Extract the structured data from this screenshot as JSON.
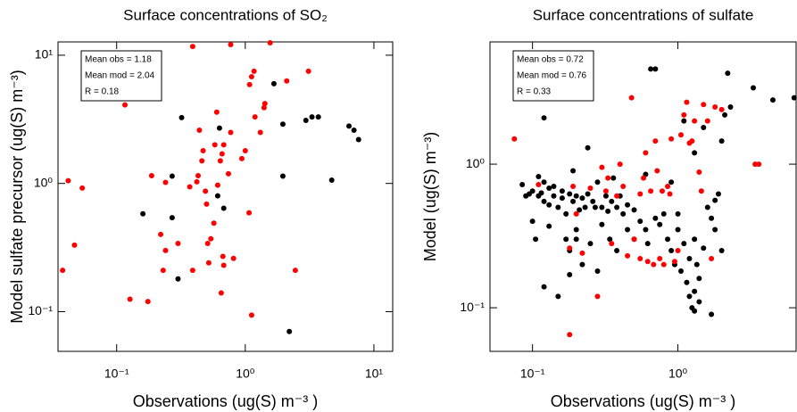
{
  "chart_data": [
    {
      "type": "scatter",
      "title": "Surface concentrations of SO₂",
      "x_label": "Observations (ug(S) m⁻³ )",
      "y_label": "Model sulfate precursor (ug(S) m⁻³)",
      "annotations": [
        "Mean obs = 1.18",
        "Mean mod = 2.04",
        "R = 0.18"
      ],
      "xscale": "log",
      "yscale": "log",
      "xlim": [
        0.035,
        14
      ],
      "ylim": [
        0.049,
        12.7
      ],
      "xticks": [
        {
          "value": 0.1,
          "label": "10⁻¹"
        },
        {
          "value": 1,
          "label": "10⁰"
        },
        {
          "value": 10,
          "label": "10¹"
        }
      ],
      "yticks": [
        {
          "value": 0.1,
          "label": "10⁻¹"
        },
        {
          "value": 1,
          "label": "10⁰"
        },
        {
          "value": 10,
          "label": "10¹"
        }
      ],
      "series": [
        {
          "color": "#000000",
          "x": [
            0.16,
            0.27,
            0.27,
            0.32,
            0.3,
            0.63,
            1.67,
            1.96,
            1.96,
            2.2,
            2.96,
            3.3,
            3.7,
            4.7,
            6.4,
            7.0,
            7.6,
            0.61,
            0.68
          ],
          "values": [
            0.58,
            1.14,
            0.54,
            3.26,
            0.18,
            2.7,
            6.0,
            2.9,
            1.14,
            0.07,
            3.1,
            3.3,
            3.3,
            1.06,
            2.8,
            2.6,
            2.2,
            0.8,
            0.64
          ]
        },
        {
          "color": "#ff0000",
          "x": [
            0.038,
            0.042,
            0.047,
            0.054,
            0.116,
            0.127,
            0.175,
            0.187,
            0.24,
            0.22,
            0.23,
            0.24,
            0.3,
            0.39,
            0.39,
            0.37,
            0.42,
            0.43,
            0.44,
            0.46,
            0.47,
            0.49,
            0.5,
            0.51,
            0.52,
            0.54,
            0.57,
            0.58,
            0.6,
            0.61,
            0.64,
            0.66,
            0.67,
            0.68,
            0.68,
            0.74,
            0.77,
            0.77,
            0.81,
            0.65,
            0.94,
            1.0,
            1.07,
            1.08,
            1.12,
            1.12,
            1.17,
            1.19,
            1.31,
            1.4,
            1.42,
            1.56,
            2.1,
            2.45,
            3.1
          ],
          "values": [
            0.21,
            1.05,
            0.33,
            0.92,
            4.1,
            0.125,
            0.12,
            1.15,
            1.02,
            0.4,
            0.21,
            0.3,
            0.34,
            0.21,
            11.7,
            0.94,
            1.03,
            1.15,
            2.6,
            1.5,
            1.8,
            0.87,
            0.69,
            0.34,
            0.24,
            0.37,
            0.49,
            2.0,
            3.6,
            0.97,
            1.5,
            1.7,
            0.27,
            0.23,
            2.0,
            1.19,
            2.5,
            12.1,
            0.26,
            0.14,
            1.56,
            1.8,
            0.59,
            5.9,
            6.8,
            0.094,
            7.5,
            3.3,
            2.5,
            3.9,
            4.2,
            12.5,
            6.3,
            0.21,
            7.5
          ]
        }
      ]
    },
    {
      "type": "scatter",
      "title": "Surface concentrations of sulfate",
      "x_label": "Observations (ug(S) m⁻³ )",
      "y_label": "Model (ug(S) m⁻³)",
      "annotations": [
        "Mean obs = 0.72",
        "Mean mod = 0.76",
        "R = 0.33"
      ],
      "xscale": "log",
      "yscale": "log",
      "xlim": [
        0.051,
        6.5
      ],
      "ylim": [
        0.0497,
        7.1
      ],
      "xticks": [
        {
          "value": 0.1,
          "label": "10⁻¹"
        },
        {
          "value": 1,
          "label": "10⁰"
        }
      ],
      "yticks": [
        {
          "value": 0.1,
          "label": "10⁻¹"
        },
        {
          "value": 1,
          "label": "10⁰"
        }
      ],
      "series": [
        {
          "color": "#000000",
          "x": [
            0.085,
            0.09,
            0.095,
            0.1,
            0.1,
            0.105,
            0.11,
            0.11,
            0.115,
            0.12,
            0.12,
            0.12,
            0.12,
            0.13,
            0.13,
            0.13,
            0.13,
            0.14,
            0.14,
            0.15,
            0.15,
            0.16,
            0.16,
            0.17,
            0.17,
            0.18,
            0.18,
            0.18,
            0.19,
            0.19,
            0.2,
            0.2,
            0.2,
            0.21,
            0.22,
            0.22,
            0.23,
            0.24,
            0.24,
            0.25,
            0.26,
            0.27,
            0.28,
            0.28,
            0.3,
            0.3,
            0.32,
            0.33,
            0.34,
            0.35,
            0.36,
            0.38,
            0.38,
            0.4,
            0.42,
            0.45,
            0.45,
            0.5,
            0.5,
            0.55,
            0.6,
            0.62,
            0.65,
            0.7,
            0.7,
            0.75,
            0.8,
            0.85,
            0.9,
            0.95,
            1.0,
            1.0,
            1.05,
            1.1,
            1.15,
            1.2,
            1.2,
            1.25,
            1.3,
            1.3,
            1.3,
            1.35,
            1.4,
            1.4,
            1.5,
            1.6,
            1.7,
            1.7,
            1.8,
            1.8,
            1.9,
            2.0,
            2.0,
            2.1,
            2.2,
            2.3,
            3.3,
            4.5,
            6.3,
            1.5,
            1.3,
            1.1,
            0.9,
            0.6
          ],
          "values": [
            0.72,
            0.6,
            0.62,
            0.65,
            0.4,
            0.3,
            0.6,
            0.82,
            0.63,
            0.75,
            0.55,
            0.14,
            2.1,
            0.68,
            0.52,
            0.37,
            3.1,
            0.6,
            0.7,
            0.5,
            0.12,
            0.65,
            0.58,
            0.45,
            0.3,
            0.62,
            0.25,
            0.17,
            0.55,
            0.9,
            0.6,
            0.35,
            0.3,
            0.48,
            0.58,
            0.2,
            0.5,
            0.62,
            1.3,
            0.28,
            0.55,
            0.5,
            0.75,
            0.18,
            0.5,
            0.38,
            0.6,
            0.47,
            0.3,
            0.55,
            0.8,
            0.5,
            0.25,
            0.6,
            0.45,
            0.35,
            0.52,
            0.48,
            0.3,
            0.4,
            0.35,
            0.28,
            4.6,
            4.6,
            0.42,
            0.38,
            0.45,
            0.3,
            0.25,
            0.2,
            0.45,
            0.35,
            0.18,
            0.28,
            0.15,
            0.12,
            0.22,
            0.1,
            0.095,
            0.13,
            0.3,
            0.2,
            0.16,
            0.11,
            0.26,
            0.5,
            0.42,
            0.09,
            0.56,
            0.35,
            0.62,
            0.25,
            1.45,
            2.2,
            4.3,
            2.5,
            3.4,
            2.8,
            2.9,
            1.8,
            1.2,
            2.0,
            0.75,
            0.85
          ]
        },
        {
          "color": "#ff0000",
          "x": [
            0.075,
            0.11,
            0.18,
            0.18,
            0.19,
            0.2,
            0.22,
            0.25,
            0.28,
            0.3,
            0.32,
            0.33,
            0.35,
            0.38,
            0.4,
            0.42,
            0.45,
            0.48,
            0.5,
            0.55,
            0.55,
            0.58,
            0.6,
            0.62,
            0.65,
            0.68,
            0.7,
            0.72,
            0.75,
            0.78,
            0.8,
            0.85,
            0.88,
            0.9,
            0.95,
            1.0,
            1.05,
            1.1,
            1.15,
            1.2,
            1.25,
            1.3,
            1.45,
            1.5,
            1.6,
            1.7,
            1.8,
            2.0,
            3.4,
            3.6,
            1.4
          ],
          "values": [
            1.5,
            0.72,
            0.065,
            0.26,
            0.7,
            0.45,
            0.24,
            0.68,
            0.12,
            0.95,
            0.65,
            0.8,
            0.28,
            0.6,
            1.0,
            0.7,
            0.23,
            2.9,
            0.3,
            0.22,
            0.62,
            0.8,
            1.2,
            0.21,
            0.65,
            0.2,
            1.45,
            0.9,
            0.22,
            0.65,
            0.2,
            0.7,
            0.62,
            1.5,
            0.21,
            0.25,
            1.6,
            2.2,
            2.7,
            1.4,
            1.45,
            2.0,
            0.65,
            2.6,
            2.0,
            0.22,
            2.5,
            2.4,
            1.0,
            1.0,
            0.88
          ]
        }
      ]
    }
  ]
}
